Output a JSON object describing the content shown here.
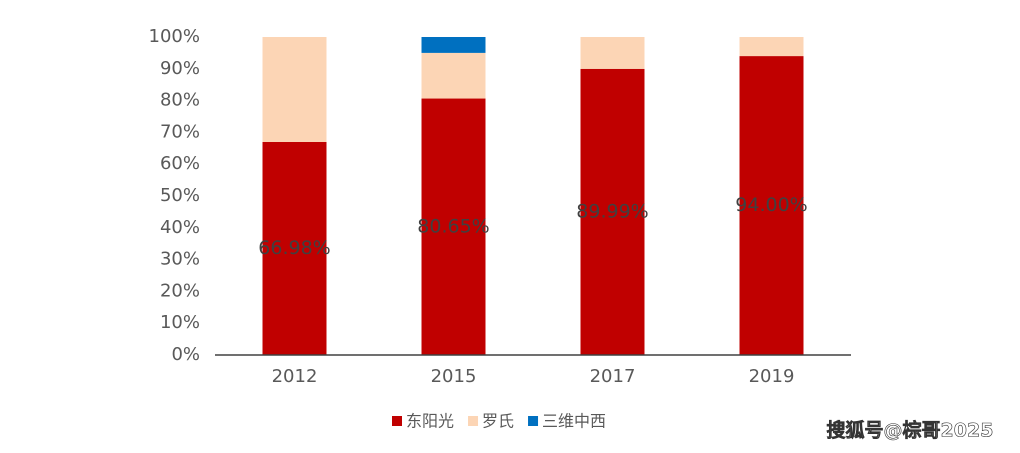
{
  "chart_data": {
    "type": "stacked_bar",
    "categories": [
      "2012",
      "2015",
      "2017",
      "2019"
    ],
    "series": [
      {
        "name": "东阳光",
        "color": "#c00000",
        "values": [
          66.98,
          80.65,
          89.99,
          94.0
        ],
        "value_labels": [
          "66.98%",
          "80.65%",
          "89.99%",
          "94.00%"
        ]
      },
      {
        "name": "罗氏",
        "color": "#fcd5b5",
        "values": [
          33.02,
          14.35,
          10.01,
          6.0
        ]
      },
      {
        "name": "三维中西",
        "color": "#0070c0",
        "values": [
          0,
          5.0,
          0,
          0
        ]
      }
    ],
    "ylim": [
      0,
      100
    ],
    "yticks": [
      {
        "value": 0,
        "label": "0%"
      },
      {
        "value": 10,
        "label": "10%"
      },
      {
        "value": 20,
        "label": "20%"
      },
      {
        "value": 30,
        "label": "30%"
      },
      {
        "value": 40,
        "label": "40%"
      },
      {
        "value": 50,
        "label": "50%"
      },
      {
        "value": 60,
        "label": "60%"
      },
      {
        "value": 70,
        "label": "70%"
      },
      {
        "value": 80,
        "label": "80%"
      },
      {
        "value": 90,
        "label": "90%"
      },
      {
        "value": 100,
        "label": "100%"
      }
    ],
    "legend": "bottom",
    "watermark": "搜狐号@棕哥2025"
  }
}
